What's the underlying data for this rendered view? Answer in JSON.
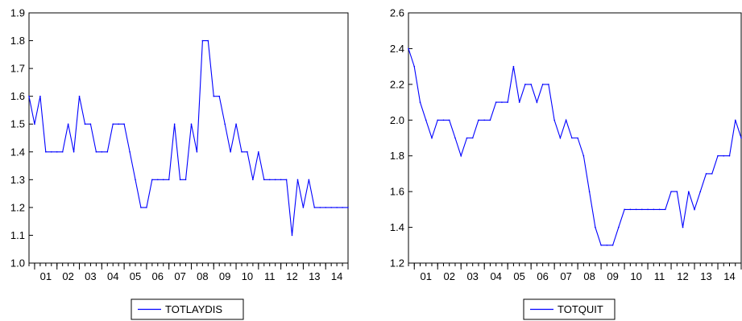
{
  "chart_data": [
    {
      "type": "line",
      "title": "",
      "xlabel": "",
      "ylabel": "",
      "ylim": [
        1.0,
        1.9
      ],
      "yticks": [
        1.0,
        1.1,
        1.2,
        1.3,
        1.4,
        1.5,
        1.6,
        1.7,
        1.8,
        1.9
      ],
      "ytick_labels": [
        "1.0",
        "1.1",
        "1.2",
        "1.3",
        "1.4",
        "1.5",
        "1.6",
        "1.7",
        "1.8",
        "1.9"
      ],
      "xlim": [
        2000.75,
        2015.0
      ],
      "xtick_labels": [
        "01",
        "02",
        "03",
        "04",
        "05",
        "06",
        "07",
        "08",
        "09",
        "10",
        "11",
        "12",
        "13",
        "14"
      ],
      "grid": false,
      "legend": "bottom-center",
      "series": [
        {
          "name": "TOTLAYDIS",
          "color": "#0000ff",
          "x": [
            2000.75,
            2001.0,
            2001.25,
            2001.5,
            2001.75,
            2002.0,
            2002.25,
            2002.5,
            2002.75,
            2003.0,
            2003.25,
            2003.5,
            2003.75,
            2004.0,
            2004.25,
            2004.5,
            2004.75,
            2005.0,
            2005.25,
            2005.5,
            2005.75,
            2006.0,
            2006.25,
            2006.5,
            2006.75,
            2007.0,
            2007.25,
            2007.5,
            2007.75,
            2008.0,
            2008.25,
            2008.5,
            2008.75,
            2009.0,
            2009.25,
            2009.5,
            2009.75,
            2010.0,
            2010.25,
            2010.5,
            2010.75,
            2011.0,
            2011.25,
            2011.5,
            2011.75,
            2012.0,
            2012.25,
            2012.5,
            2012.75,
            2013.0,
            2013.25,
            2013.5,
            2013.75,
            2014.0,
            2014.25,
            2014.5,
            2014.75,
            2015.0
          ],
          "values": [
            1.6,
            1.5,
            1.6,
            1.4,
            1.4,
            1.4,
            1.4,
            1.5,
            1.4,
            1.6,
            1.5,
            1.5,
            1.4,
            1.4,
            1.4,
            1.5,
            1.5,
            1.5,
            1.4,
            1.3,
            1.2,
            1.2,
            1.3,
            1.3,
            1.3,
            1.3,
            1.5,
            1.3,
            1.3,
            1.5,
            1.4,
            1.8,
            1.8,
            1.6,
            1.6,
            1.5,
            1.4,
            1.5,
            1.4,
            1.4,
            1.3,
            1.4,
            1.3,
            1.3,
            1.3,
            1.3,
            1.3,
            1.1,
            1.3,
            1.2,
            1.3,
            1.2,
            1.2,
            1.2,
            1.2,
            1.2,
            1.2,
            1.2
          ]
        }
      ]
    },
    {
      "type": "line",
      "title": "",
      "xlabel": "",
      "ylabel": "",
      "ylim": [
        1.2,
        2.6
      ],
      "yticks": [
        1.2,
        1.4,
        1.6,
        1.8,
        2.0,
        2.2,
        2.4,
        2.6
      ],
      "ytick_labels": [
        "1.2",
        "1.4",
        "1.6",
        "1.8",
        "2.0",
        "2.2",
        "2.4",
        "2.6"
      ],
      "xlim": [
        2000.75,
        2015.0
      ],
      "xtick_labels": [
        "01",
        "02",
        "03",
        "04",
        "05",
        "06",
        "07",
        "08",
        "09",
        "10",
        "11",
        "12",
        "13",
        "14"
      ],
      "grid": false,
      "legend": "bottom-center",
      "series": [
        {
          "name": "TOTQUIT",
          "color": "#0000ff",
          "x": [
            2000.75,
            2001.0,
            2001.25,
            2001.5,
            2001.75,
            2002.0,
            2002.25,
            2002.5,
            2002.75,
            2003.0,
            2003.25,
            2003.5,
            2003.75,
            2004.0,
            2004.25,
            2004.5,
            2004.75,
            2005.0,
            2005.25,
            2005.5,
            2005.75,
            2006.0,
            2006.25,
            2006.5,
            2006.75,
            2007.0,
            2007.25,
            2007.5,
            2007.75,
            2008.0,
            2008.25,
            2008.5,
            2008.75,
            2009.0,
            2009.25,
            2009.5,
            2009.75,
            2010.0,
            2010.25,
            2010.5,
            2010.75,
            2011.0,
            2011.25,
            2011.5,
            2011.75,
            2012.0,
            2012.25,
            2012.5,
            2012.75,
            2013.0,
            2013.25,
            2013.5,
            2013.75,
            2014.0,
            2014.25,
            2014.5,
            2014.75,
            2015.0
          ],
          "values": [
            2.4,
            2.3,
            2.1,
            2.0,
            1.9,
            2.0,
            2.0,
            2.0,
            1.9,
            1.8,
            1.9,
            1.9,
            2.0,
            2.0,
            2.0,
            2.1,
            2.1,
            2.1,
            2.3,
            2.1,
            2.2,
            2.2,
            2.1,
            2.2,
            2.2,
            2.0,
            1.9,
            2.0,
            1.9,
            1.9,
            1.8,
            1.6,
            1.4,
            1.3,
            1.3,
            1.3,
            1.4,
            1.5,
            1.5,
            1.5,
            1.5,
            1.5,
            1.5,
            1.5,
            1.5,
            1.6,
            1.6,
            1.4,
            1.6,
            1.5,
            1.6,
            1.7,
            1.7,
            1.8,
            1.8,
            1.8,
            2.0,
            1.9
          ]
        }
      ]
    }
  ]
}
